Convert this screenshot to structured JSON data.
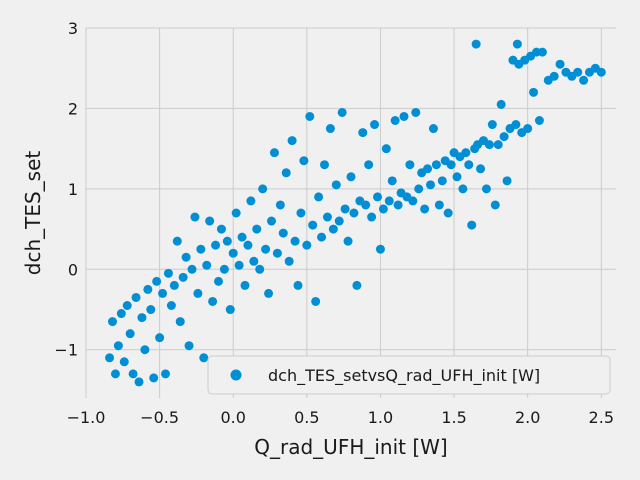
{
  "chart_data": {
    "type": "scatter",
    "title": "",
    "xlabel": "Q_rad_UFH_init [W]",
    "ylabel": "dch_TES_set",
    "xlim": [
      -1.0,
      2.6
    ],
    "ylim": [
      -1.6,
      3.0
    ],
    "xticks": [
      -1.0,
      -0.5,
      0.0,
      0.5,
      1.0,
      1.5,
      2.0,
      2.5
    ],
    "xtick_labels": [
      "−1.0",
      "−0.5",
      "0.0",
      "0.5",
      "1.0",
      "1.5",
      "2.0",
      "2.5"
    ],
    "yticks": [
      -1,
      0,
      1,
      2,
      3
    ],
    "ytick_labels": [
      "−1",
      "0",
      "1",
      "2",
      "3"
    ],
    "grid": true,
    "legend_position": "lower-right",
    "series": [
      {
        "name": "dch_TES_setvsQ_rad_UFH_init [W]",
        "color": "#008fd5",
        "points": [
          [
            -0.84,
            -1.1
          ],
          [
            -0.82,
            -0.65
          ],
          [
            -0.8,
            -1.3
          ],
          [
            -0.78,
            -0.95
          ],
          [
            -0.76,
            -0.55
          ],
          [
            -0.74,
            -1.15
          ],
          [
            -0.72,
            -0.45
          ],
          [
            -0.7,
            -0.8
          ],
          [
            -0.68,
            -1.3
          ],
          [
            -0.66,
            -0.35
          ],
          [
            -0.64,
            -1.4
          ],
          [
            -0.62,
            -0.6
          ],
          [
            -0.6,
            -1.0
          ],
          [
            -0.58,
            -0.25
          ],
          [
            -0.56,
            -0.5
          ],
          [
            -0.54,
            -1.35
          ],
          [
            -0.52,
            -0.15
          ],
          [
            -0.5,
            -0.85
          ],
          [
            -0.48,
            -0.3
          ],
          [
            -0.46,
            -1.3
          ],
          [
            -0.44,
            -0.05
          ],
          [
            -0.42,
            -0.45
          ],
          [
            -0.4,
            -0.2
          ],
          [
            -0.38,
            0.35
          ],
          [
            -0.36,
            -0.65
          ],
          [
            -0.34,
            -0.1
          ],
          [
            -0.32,
            0.15
          ],
          [
            -0.3,
            -0.95
          ],
          [
            -0.28,
            0.0
          ],
          [
            -0.26,
            0.65
          ],
          [
            -0.24,
            -0.3
          ],
          [
            -0.22,
            0.25
          ],
          [
            -0.2,
            -1.1
          ],
          [
            -0.18,
            0.05
          ],
          [
            -0.16,
            0.6
          ],
          [
            -0.14,
            -0.4
          ],
          [
            -0.12,
            0.3
          ],
          [
            -0.1,
            -0.15
          ],
          [
            -0.08,
            0.5
          ],
          [
            -0.06,
            0.0
          ],
          [
            -0.04,
            0.35
          ],
          [
            -0.02,
            -0.5
          ],
          [
            0.0,
            0.2
          ],
          [
            0.02,
            0.7
          ],
          [
            0.04,
            0.05
          ],
          [
            0.06,
            0.4
          ],
          [
            0.08,
            -0.2
          ],
          [
            0.1,
            0.3
          ],
          [
            0.12,
            0.85
          ],
          [
            0.14,
            0.1
          ],
          [
            0.16,
            0.5
          ],
          [
            0.18,
            0.0
          ],
          [
            0.2,
            1.0
          ],
          [
            0.22,
            0.25
          ],
          [
            0.24,
            -0.3
          ],
          [
            0.26,
            0.6
          ],
          [
            0.28,
            1.45
          ],
          [
            0.3,
            0.2
          ],
          [
            0.32,
            0.8
          ],
          [
            0.34,
            0.45
          ],
          [
            0.36,
            1.2
          ],
          [
            0.38,
            0.1
          ],
          [
            0.4,
            1.6
          ],
          [
            0.42,
            0.35
          ],
          [
            0.44,
            -0.2
          ],
          [
            0.46,
            0.7
          ],
          [
            0.48,
            1.35
          ],
          [
            0.5,
            0.3
          ],
          [
            0.52,
            1.9
          ],
          [
            0.54,
            0.55
          ],
          [
            0.56,
            -0.4
          ],
          [
            0.58,
            0.9
          ],
          [
            0.6,
            0.4
          ],
          [
            0.62,
            1.3
          ],
          [
            0.64,
            0.65
          ],
          [
            0.66,
            1.75
          ],
          [
            0.68,
            0.5
          ],
          [
            0.7,
            1.05
          ],
          [
            0.72,
            0.6
          ],
          [
            0.74,
            1.95
          ],
          [
            0.76,
            0.75
          ],
          [
            0.78,
            0.35
          ],
          [
            0.8,
            1.15
          ],
          [
            0.82,
            0.7
          ],
          [
            0.84,
            -0.2
          ],
          [
            0.86,
            0.85
          ],
          [
            0.88,
            1.7
          ],
          [
            0.9,
            0.8
          ],
          [
            0.92,
            1.3
          ],
          [
            0.94,
            0.65
          ],
          [
            0.96,
            1.8
          ],
          [
            0.98,
            0.9
          ],
          [
            1.0,
            0.25
          ],
          [
            1.02,
            0.75
          ],
          [
            1.04,
            1.5
          ],
          [
            1.06,
            0.85
          ],
          [
            1.08,
            1.1
          ],
          [
            1.1,
            1.85
          ],
          [
            1.12,
            0.8
          ],
          [
            1.14,
            0.95
          ],
          [
            1.16,
            1.9
          ],
          [
            1.18,
            0.9
          ],
          [
            1.2,
            1.3
          ],
          [
            1.22,
            0.85
          ],
          [
            1.24,
            1.95
          ],
          [
            1.26,
            1.0
          ],
          [
            1.28,
            1.2
          ],
          [
            1.3,
            0.75
          ],
          [
            1.32,
            1.25
          ],
          [
            1.34,
            1.05
          ],
          [
            1.36,
            1.75
          ],
          [
            1.38,
            1.3
          ],
          [
            1.4,
            0.8
          ],
          [
            1.42,
            1.1
          ],
          [
            1.44,
            1.35
          ],
          [
            1.46,
            0.7
          ],
          [
            1.48,
            1.3
          ],
          [
            1.5,
            1.45
          ],
          [
            1.52,
            1.15
          ],
          [
            1.54,
            1.4
          ],
          [
            1.56,
            1.0
          ],
          [
            1.58,
            1.45
          ],
          [
            1.6,
            1.3
          ],
          [
            1.62,
            0.55
          ],
          [
            1.64,
            1.5
          ],
          [
            1.66,
            1.55
          ],
          [
            1.68,
            1.25
          ],
          [
            1.7,
            1.6
          ],
          [
            1.72,
            1.0
          ],
          [
            1.74,
            1.55
          ],
          [
            1.76,
            1.8
          ],
          [
            1.78,
            0.8
          ],
          [
            1.8,
            1.55
          ],
          [
            1.82,
            2.05
          ],
          [
            1.84,
            1.65
          ],
          [
            1.86,
            1.1
          ],
          [
            1.88,
            1.75
          ],
          [
            1.9,
            2.6
          ],
          [
            1.92,
            1.8
          ],
          [
            1.94,
            2.55
          ],
          [
            1.96,
            1.7
          ],
          [
            1.98,
            2.6
          ],
          [
            2.0,
            1.75
          ],
          [
            2.02,
            2.65
          ],
          [
            2.04,
            2.2
          ],
          [
            2.06,
            2.7
          ],
          [
            2.08,
            1.85
          ],
          [
            2.1,
            2.7
          ],
          [
            2.14,
            2.35
          ],
          [
            2.18,
            2.4
          ],
          [
            2.22,
            2.55
          ],
          [
            2.26,
            2.45
          ],
          [
            2.3,
            2.4
          ],
          [
            2.34,
            2.45
          ],
          [
            2.38,
            2.35
          ],
          [
            2.42,
            2.45
          ],
          [
            2.46,
            2.5
          ],
          [
            2.5,
            2.45
          ],
          [
            1.65,
            2.8
          ],
          [
            1.93,
            2.8
          ]
        ]
      }
    ]
  }
}
